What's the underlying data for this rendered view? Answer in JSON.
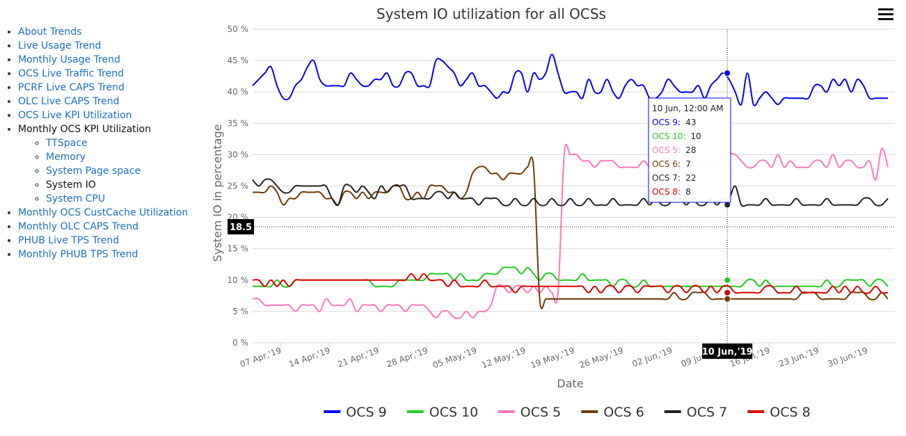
{
  "nav": {
    "items": [
      {
        "label": "About Trends"
      },
      {
        "label": "Live Usage Trend"
      },
      {
        "label": "Monthly Usage Trend"
      },
      {
        "label": "OCS Live Traffic Trend"
      },
      {
        "label": "PCRF Live CAPS Trend"
      },
      {
        "label": "OLC Live CAPS Trend"
      },
      {
        "label": "OCS Live KPI Utilization"
      },
      {
        "label": "Monthly OCS KPI Utilization",
        "active": true,
        "children": [
          {
            "label": "TTSpace"
          },
          {
            "label": "Memory"
          },
          {
            "label": "System Page space"
          },
          {
            "label": "System IO",
            "active": true
          },
          {
            "label": "System CPU"
          }
        ]
      },
      {
        "label": "Monthly OCS CustCache Utilization"
      },
      {
        "label": "Monthly OLC CAPS Trend"
      },
      {
        "label": "PHUB Live TPS Trend"
      },
      {
        "label": "Monthly PHUB TPS Trend"
      }
    ]
  },
  "chart_data": {
    "type": "line",
    "title": "System IO utilization for all OCSs",
    "xlabel": "Date",
    "ylabel": "System IO in percentage",
    "ylim": [
      0,
      50
    ],
    "yticks": [
      0,
      5,
      10,
      15,
      20,
      25,
      30,
      35,
      40,
      45,
      50
    ],
    "ytick_labels": [
      "0 %",
      "5 %",
      "10 %",
      "15 %",
      "20 %",
      "25 %",
      "30 %",
      "35 %",
      "40 %",
      "45 %",
      "50 %"
    ],
    "xlim": [
      "2019-04-03",
      "2019-07-04"
    ],
    "xticks": [
      "2019-04-07",
      "2019-04-14",
      "2019-04-21",
      "2019-04-28",
      "2019-05-05",
      "2019-05-12",
      "2019-05-19",
      "2019-05-26",
      "2019-06-02",
      "2019-06-09",
      "2019-06-16",
      "2019-06-23",
      "2019-06-30"
    ],
    "xtick_labels": [
      "07 Apr,'19",
      "14 Apr,'19",
      "21 Apr,'19",
      "28 Apr,'19",
      "05 May,'19",
      "12 May,'19",
      "19 May,'19",
      "26 May,'19",
      "02 Jun,'19",
      "09 Jun,'19",
      "16 Jun,'19",
      "23 Jun,'19",
      "30 Jun,'19"
    ],
    "grid": true,
    "legend": "bottom",
    "crosshair": {
      "x": "2019-06-10",
      "x_label": "10 Jun,'19",
      "y": 18.5,
      "y_label": "18.5"
    },
    "tooltip": {
      "header": "10 Jun, 12:00 AM",
      "rows": [
        {
          "name": "OCS 9",
          "value": "43"
        },
        {
          "name": "OCS 10",
          "value": "10"
        },
        {
          "name": "OCS 5",
          "value": "28"
        },
        {
          "name": "OCS 6",
          "value": "7"
        },
        {
          "name": "OCS 7",
          "value": "22"
        },
        {
          "name": "OCS 8",
          "value": "8"
        }
      ]
    },
    "x_start": "2019-04-03",
    "series": [
      {
        "name": "OCS 9",
        "color": "#0000ee",
        "values": [
          41,
          42,
          43,
          44,
          41,
          39,
          39,
          41,
          42,
          44,
          45,
          42,
          41,
          41,
          41,
          41,
          43,
          42,
          41,
          41,
          42,
          42,
          43,
          41,
          41,
          43,
          43,
          41,
          41,
          41,
          45,
          45,
          44,
          43,
          41,
          42,
          43,
          41,
          41,
          40,
          39,
          40,
          40,
          43,
          43,
          40,
          43,
          42,
          43,
          46,
          43,
          40,
          40,
          40,
          39,
          42,
          40,
          40,
          42,
          40,
          39,
          41,
          42,
          41,
          41,
          39,
          39,
          40,
          42,
          41,
          40,
          40,
          40,
          41,
          39,
          41,
          42,
          43,
          42,
          40,
          38,
          43,
          38,
          39,
          40,
          39,
          38,
          39,
          39,
          39,
          39,
          39,
          41,
          41,
          40,
          42,
          41,
          42,
          40,
          42,
          41,
          39,
          39,
          39,
          39
        ]
      },
      {
        "name": "OCS 10",
        "color": "#22cc22",
        "values": [
          9,
          9,
          9,
          9,
          10,
          9,
          9,
          10,
          10,
          10,
          10,
          10,
          10,
          10,
          10,
          10,
          10,
          10,
          10,
          10,
          9,
          9,
          9,
          9,
          10,
          10,
          10,
          10,
          10,
          11,
          11,
          11,
          11,
          10,
          11,
          10,
          10,
          10,
          11,
          11,
          11,
          12,
          12,
          12,
          11,
          12,
          11,
          10,
          11,
          11,
          10,
          10,
          10,
          10,
          11,
          10,
          10,
          10,
          10,
          9,
          10,
          10,
          9,
          9,
          10,
          9,
          9,
          9,
          9,
          9,
          9,
          9,
          9,
          9,
          9,
          9,
          9,
          9,
          9,
          9,
          9,
          10,
          10,
          9,
          10,
          9,
          9,
          9,
          9,
          9,
          9,
          9,
          9,
          9,
          10,
          9,
          9,
          10,
          10,
          10,
          10,
          9,
          10,
          10,
          9
        ]
      },
      {
        "name": "OCS 5",
        "color": "#ff77bb",
        "values": [
          7,
          7,
          6,
          6,
          6,
          6,
          6,
          5,
          6,
          6,
          6,
          5,
          7,
          6,
          6,
          6,
          7,
          5,
          6,
          6,
          6,
          5,
          6,
          6,
          6,
          5,
          6,
          6,
          6,
          5,
          4,
          5,
          5,
          4,
          4,
          5,
          4,
          5,
          5,
          6,
          9,
          9,
          8,
          9,
          9,
          8,
          9,
          8,
          9,
          8,
          8,
          30,
          30,
          30,
          29,
          29,
          28,
          29,
          29,
          29,
          28,
          28,
          28,
          28,
          29,
          28,
          28,
          29,
          29,
          29,
          28,
          28,
          29,
          29,
          28,
          29,
          29,
          28,
          30,
          30,
          29,
          28,
          28,
          29,
          29,
          28,
          30,
          28,
          29,
          28,
          28,
          28,
          29,
          29,
          28,
          30,
          28,
          29,
          29,
          28,
          28,
          29,
          26,
          31,
          28
        ]
      },
      {
        "name": "OCS 6",
        "color": "#6b3a00",
        "values": [
          24,
          24,
          24,
          25,
          24,
          22,
          23,
          23,
          24,
          24,
          24,
          24,
          23,
          23,
          22,
          24,
          24,
          23,
          24,
          23,
          24,
          24,
          24,
          25,
          25,
          23,
          23,
          24,
          23,
          25,
          25,
          25,
          24,
          24,
          23,
          24,
          27,
          28,
          28,
          27,
          27,
          26,
          27,
          27,
          27,
          28,
          28,
          7,
          7,
          7,
          7,
          7,
          7,
          7,
          7,
          7,
          7,
          7,
          7,
          7,
          7,
          7,
          7,
          7,
          7,
          7,
          7,
          7,
          7,
          8,
          7,
          7,
          8,
          8,
          8,
          7,
          7,
          7,
          7,
          7,
          7,
          7,
          7,
          7,
          7,
          7,
          7,
          7,
          7,
          7,
          8,
          8,
          8,
          7,
          7,
          7,
          7,
          7,
          8,
          8,
          8,
          7,
          7,
          8,
          7
        ]
      },
      {
        "name": "OCS 7",
        "color": "#222222",
        "values": [
          26,
          25,
          26,
          26,
          25,
          24,
          24,
          25,
          25,
          25,
          25,
          25,
          25,
          23,
          22,
          25,
          25,
          24,
          25,
          24,
          23,
          25,
          24,
          25,
          25,
          25,
          23,
          23,
          23,
          23,
          24,
          24,
          23,
          24,
          23,
          23,
          23,
          22,
          23,
          23,
          23,
          22,
          22,
          23,
          22,
          22,
          23,
          22,
          22,
          23,
          22,
          22,
          23,
          22,
          22,
          23,
          22,
          22,
          22,
          23,
          22,
          22,
          22,
          22,
          23,
          22,
          23,
          22,
          22,
          23,
          23,
          22,
          23,
          22,
          22,
          23,
          22,
          23,
          23,
          25,
          22,
          22,
          22,
          22,
          23,
          22,
          22,
          22,
          22,
          23,
          22,
          22,
          22,
          22,
          23,
          22,
          22,
          22,
          22,
          22,
          23,
          23,
          22,
          22,
          23
        ]
      },
      {
        "name": "OCS 8",
        "color": "#dd0000",
        "values": [
          10,
          10,
          9,
          10,
          9,
          10,
          9,
          10,
          10,
          10,
          10,
          10,
          10,
          10,
          10,
          10,
          10,
          10,
          10,
          10,
          10,
          10,
          10,
          10,
          10,
          10,
          11,
          10,
          11,
          10,
          10,
          10,
          9,
          10,
          9,
          9,
          9,
          9,
          10,
          9,
          9,
          9,
          9,
          8,
          9,
          9,
          9,
          9,
          9,
          9,
          9,
          9,
          9,
          9,
          9,
          8,
          9,
          8,
          9,
          9,
          8,
          9,
          9,
          8,
          9,
          9,
          9,
          9,
          8,
          9,
          9,
          8,
          9,
          9,
          8,
          9,
          8,
          9,
          9,
          8,
          8,
          8,
          8,
          8,
          9,
          9,
          8,
          8,
          8,
          9,
          8,
          8,
          8,
          8,
          8,
          9,
          8,
          9,
          8,
          9,
          8,
          8,
          9,
          8,
          8
        ]
      }
    ]
  }
}
